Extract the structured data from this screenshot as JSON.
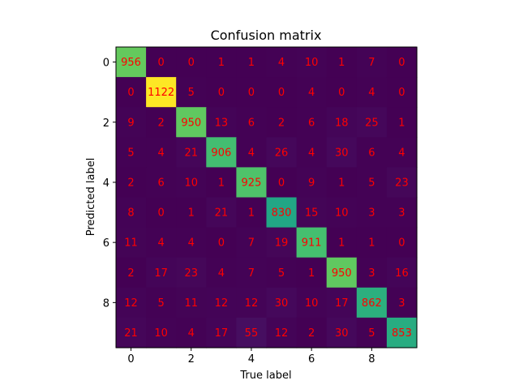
{
  "chart_data": {
    "type": "heatmap",
    "title": "Confusion matrix",
    "xlabel": "True label",
    "ylabel": "Predicted label",
    "xticks": [
      0,
      2,
      4,
      6,
      8
    ],
    "yticks": [
      0,
      2,
      4,
      6,
      8
    ],
    "annotation_color": "#ff0000",
    "colormap": "viridis",
    "vmin": 0,
    "vmax": 1122,
    "matrix": [
      [
        956,
        0,
        0,
        1,
        1,
        4,
        10,
        1,
        7,
        0
      ],
      [
        0,
        1122,
        5,
        0,
        0,
        0,
        4,
        0,
        4,
        0
      ],
      [
        9,
        2,
        950,
        13,
        6,
        2,
        6,
        18,
        25,
        1
      ],
      [
        5,
        4,
        21,
        906,
        4,
        26,
        4,
        30,
        6,
        4
      ],
      [
        2,
        6,
        10,
        1,
        925,
        0,
        9,
        1,
        5,
        23
      ],
      [
        8,
        0,
        1,
        21,
        1,
        830,
        15,
        10,
        3,
        3
      ],
      [
        11,
        4,
        4,
        0,
        7,
        19,
        911,
        1,
        1,
        0
      ],
      [
        2,
        17,
        23,
        4,
        7,
        5,
        1,
        950,
        3,
        16
      ],
      [
        12,
        5,
        11,
        12,
        12,
        30,
        10,
        17,
        862,
        3
      ],
      [
        21,
        10,
        4,
        17,
        55,
        12,
        2,
        30,
        5,
        853
      ]
    ]
  }
}
